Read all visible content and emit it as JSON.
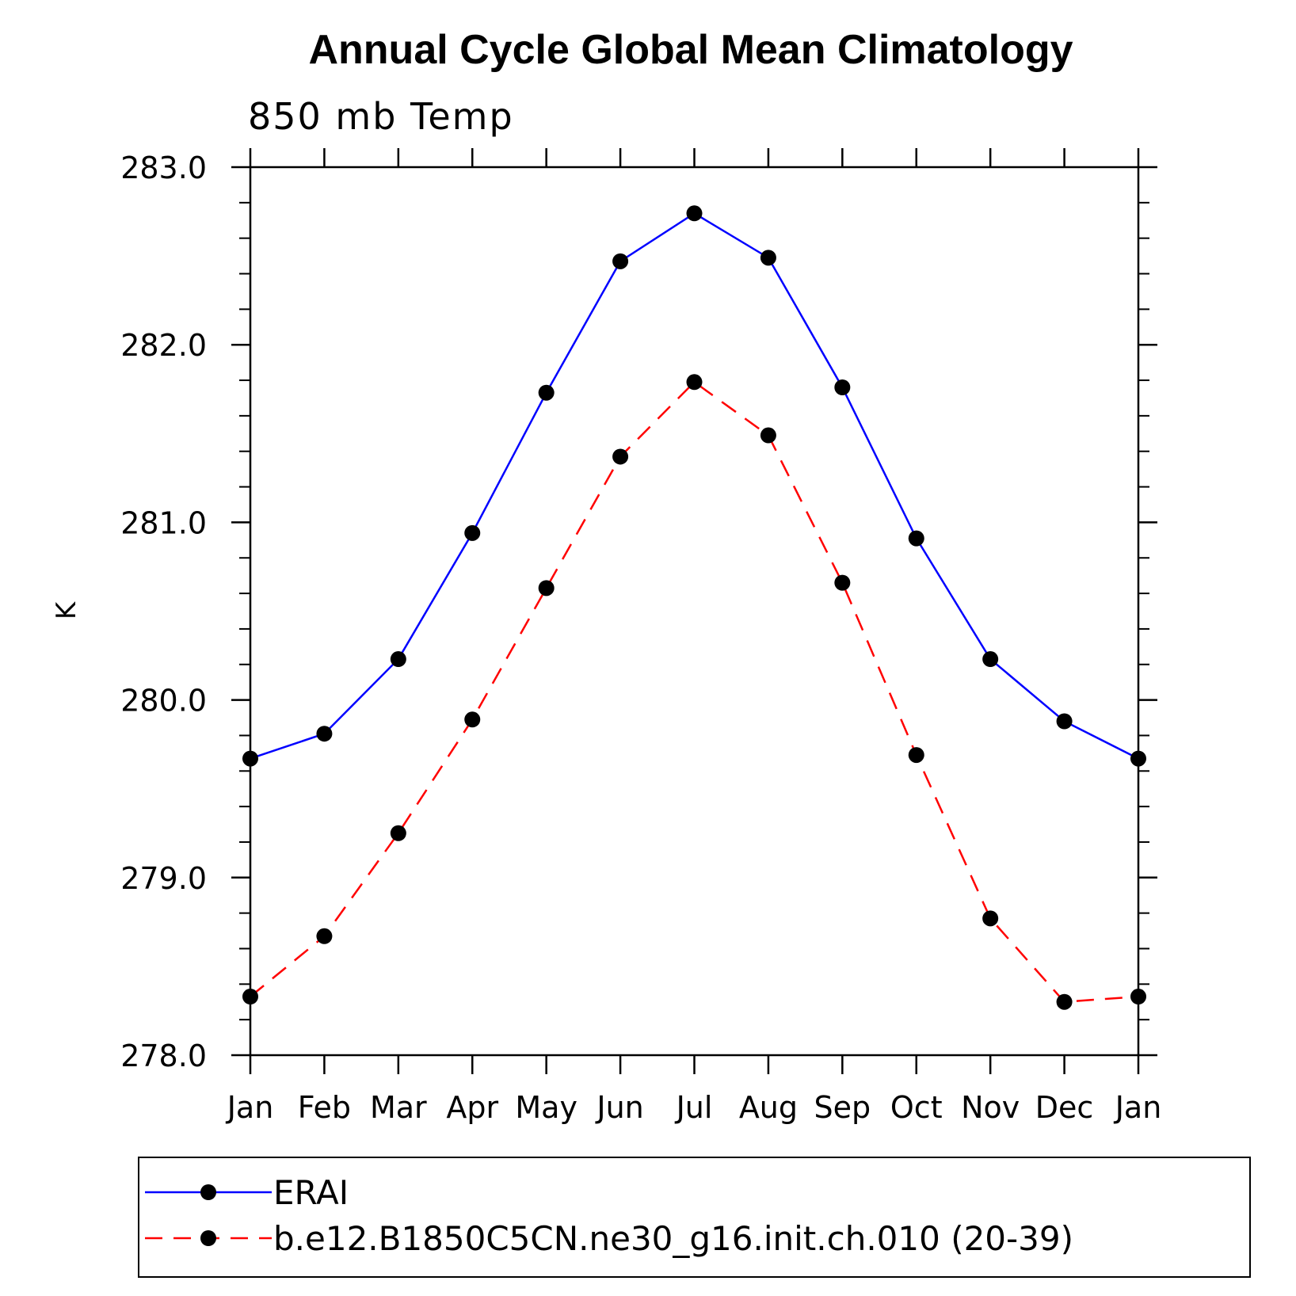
{
  "chart_data": {
    "type": "line",
    "title": "Annual Cycle Global Mean Climatology",
    "subtitle": "850 mb Temp",
    "xlabel": "",
    "ylabel": "K",
    "categories": [
      "Jan",
      "Feb",
      "Mar",
      "Apr",
      "May",
      "Jun",
      "Jul",
      "Aug",
      "Sep",
      "Oct",
      "Nov",
      "Dec",
      "Jan"
    ],
    "ylim": [
      278.0,
      283.0
    ],
    "y_major_ticks": [
      278.0,
      279.0,
      280.0,
      281.0,
      282.0,
      283.0
    ],
    "y_tick_labels": [
      "278.0",
      "279.0",
      "280.0",
      "281.0",
      "282.0",
      "283.0"
    ],
    "y_minor_step": 0.2,
    "grid": false,
    "legend_position": "bottom",
    "series": [
      {
        "name": "ERAI",
        "color": "#0000ff",
        "line_style": "solid",
        "marker": "filled-circle",
        "values": [
          279.67,
          279.81,
          280.23,
          280.94,
          281.73,
          282.47,
          282.74,
          282.49,
          281.76,
          280.91,
          280.23,
          279.88,
          279.67
        ]
      },
      {
        "name": "b.e12.B1850C5CN.ne30_g16.init.ch.010 (20-39)",
        "color": "#ff0000",
        "line_style": "dashed",
        "marker": "filled-circle",
        "values": [
          278.33,
          278.67,
          279.25,
          279.89,
          280.63,
          281.37,
          281.79,
          281.49,
          280.66,
          279.69,
          278.77,
          278.3,
          278.33
        ]
      }
    ]
  }
}
